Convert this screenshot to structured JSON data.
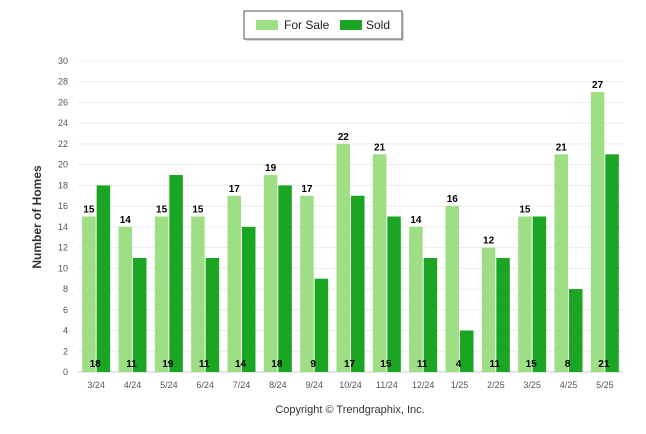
{
  "chart_data": {
    "type": "bar",
    "categories": [
      "3/24",
      "4/24",
      "5/24",
      "6/24",
      "7/24",
      "8/24",
      "9/24",
      "10/24",
      "11/24",
      "12/24",
      "1/25",
      "2/25",
      "3/25",
      "4/25",
      "5/25"
    ],
    "series": [
      {
        "name": "For Sale",
        "color": "#9edf85",
        "values": [
          15,
          14,
          15,
          15,
          17,
          19,
          17,
          22,
          21,
          14,
          16,
          12,
          15,
          21,
          27
        ]
      },
      {
        "name": "Sold",
        "color": "#1aa523",
        "values": [
          18,
          11,
          19,
          11,
          14,
          18,
          9,
          17,
          15,
          11,
          4,
          11,
          15,
          8,
          21
        ]
      }
    ],
    "ylabel": "Number of Homes",
    "ylim": [
      0,
      30
    ],
    "yticks": [
      0,
      2,
      4,
      6,
      8,
      10,
      12,
      14,
      16,
      18,
      20,
      22,
      24,
      26,
      28,
      30
    ],
    "grid": true,
    "legend_position": "top-center"
  },
  "footer": {
    "copyright": "Copyright © Trendgraphix, Inc."
  }
}
